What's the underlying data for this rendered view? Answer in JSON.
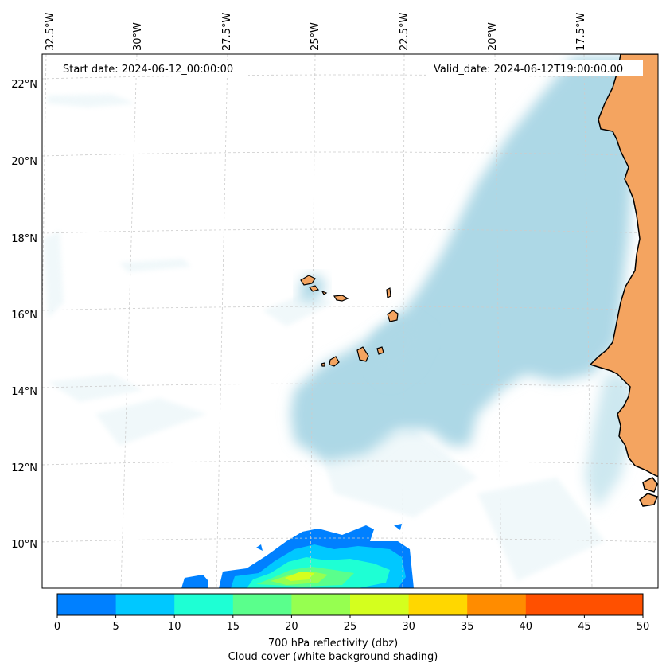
{
  "map": {
    "start_label": "Start date: 2024-06-12_00:00:00",
    "valid_label": "Valid_date: 2024-06-12T19:00:00.00",
    "lon_labels": [
      "32.5°W",
      "30°W",
      "27.5°W",
      "25°W",
      "22.5°W",
      "20°W",
      "17.5°W"
    ],
    "lat_labels": [
      "22°N",
      "20°N",
      "18°N",
      "16°N",
      "14°N",
      "12°N",
      "10°N"
    ],
    "colors": {
      "land": "#f4a460",
      "cloud": "#add8e6",
      "coast": "#000000",
      "grid": "#c8c8c8"
    }
  },
  "colorbar": {
    "ticks": [
      "0",
      "5",
      "10",
      "15",
      "20",
      "25",
      "30",
      "35",
      "40",
      "45",
      "50"
    ],
    "colors": [
      "#0080ff",
      "#00c8ff",
      "#1effd4",
      "#5aff8c",
      "#96ff50",
      "#d4ff1e",
      "#ffd700",
      "#ff8c00",
      "#ff5000",
      "#ff5000"
    ],
    "label_line1": "700 hPa reflectivity (dbz)",
    "label_line2": "Cloud cover (white background shading)"
  }
}
